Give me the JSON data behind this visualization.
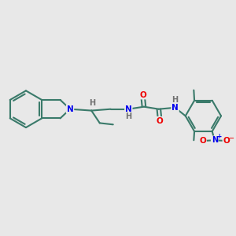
{
  "bg_color": "#e8e8e8",
  "bond_color": "#3a7a6a",
  "bond_width": 1.5,
  "atom_colors": {
    "N": "#0000ee",
    "O": "#ee0000",
    "H": "#707070",
    "C": "#3a7a6a"
  }
}
